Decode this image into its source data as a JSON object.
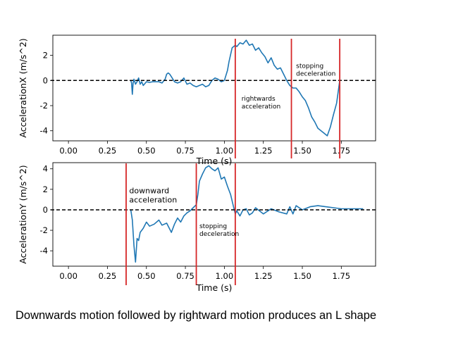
{
  "caption": "Downwards motion followed by rightward motion produces an L shape",
  "colors": {
    "series": "#1f77b4",
    "marker": "#d62728",
    "zero_line": "#000000",
    "axes": "#000000"
  },
  "chart_data": [
    {
      "type": "line",
      "xlabel": "Time (s)",
      "ylabel": "AccelerationX (m/s^2)",
      "xlim": [
        -0.1,
        1.97
      ],
      "ylim": [
        -4.8,
        3.6
      ],
      "xticks": [
        "0.00",
        "0.25",
        "0.50",
        "0.75",
        "1.00",
        "1.25",
        "1.50",
        "1.75"
      ],
      "yticks": [
        "2",
        "0",
        "-2",
        "-4"
      ],
      "reference_line": {
        "y": 0,
        "style": "dashed"
      },
      "markers": [
        1.07,
        1.43,
        1.74
      ],
      "annotations": [
        {
          "lines": [
            "rightwards",
            "acceleration"
          ],
          "x": 1.11,
          "y": -1.6,
          "size": "small"
        },
        {
          "lines": [
            "stopping",
            "deceleration"
          ],
          "x": 1.46,
          "y": 1.0,
          "size": "small"
        }
      ],
      "series": [
        {
          "x": [
            0.4,
            0.405,
            0.41,
            0.415,
            0.42,
            0.43,
            0.44,
            0.45,
            0.46,
            0.47,
            0.48,
            0.5,
            0.52,
            0.54,
            0.56,
            0.58,
            0.6,
            0.62,
            0.63,
            0.64,
            0.65,
            0.66,
            0.68,
            0.7,
            0.72,
            0.74,
            0.76,
            0.78,
            0.8,
            0.82,
            0.84,
            0.86,
            0.88,
            0.9,
            0.92,
            0.94,
            0.96,
            0.98,
            1.0,
            1.02,
            1.03,
            1.05,
            1.07,
            1.08,
            1.1,
            1.12,
            1.14,
            1.16,
            1.18,
            1.2,
            1.22,
            1.24,
            1.26,
            1.28,
            1.3,
            1.32,
            1.34,
            1.36,
            1.38,
            1.4,
            1.42,
            1.44,
            1.46,
            1.48,
            1.5,
            1.52,
            1.54,
            1.56,
            1.58,
            1.6,
            1.62,
            1.64,
            1.66,
            1.68,
            1.7,
            1.72,
            1.74
          ],
          "y": [
            0,
            -0.2,
            -1.1,
            -0.2,
            0.1,
            -0.3,
            -0.1,
            0.2,
            -0.3,
            -0.1,
            -0.4,
            -0.1,
            -0.15,
            -0.1,
            -0.1,
            -0.1,
            -0.2,
            0.1,
            0.5,
            0.6,
            0.5,
            0.3,
            -0.1,
            -0.2,
            -0.1,
            0.2,
            -0.3,
            -0.2,
            -0.4,
            -0.5,
            -0.4,
            -0.3,
            -0.5,
            -0.4,
            0.0,
            0.2,
            0.1,
            -0.1,
            0.0,
            0.8,
            1.5,
            2.6,
            2.8,
            2.7,
            3.0,
            2.9,
            3.2,
            2.8,
            2.9,
            2.4,
            2.6,
            2.2,
            1.9,
            1.4,
            1.8,
            1.2,
            0.9,
            1.0,
            0.5,
            0.0,
            -0.4,
            -0.6,
            -0.6,
            -0.9,
            -1.3,
            -1.6,
            -2.2,
            -2.9,
            -3.3,
            -3.8,
            -4.0,
            -4.2,
            -4.4,
            -3.7,
            -2.7,
            -1.8,
            0.0
          ]
        }
      ]
    },
    {
      "type": "line",
      "xlabel": "Time (s)",
      "ylabel": "AccelerationY (m/s^2)",
      "xlim": [
        -0.1,
        1.97
      ],
      "ylim": [
        -5.5,
        4.6
      ],
      "xticks": [
        "0.00",
        "0.25",
        "0.50",
        "0.75",
        "1.00",
        "1.25",
        "1.50",
        "1.75"
      ],
      "yticks": [
        "4",
        "2",
        "0",
        "-2",
        "-4"
      ],
      "reference_line": {
        "y": 0,
        "style": "dashed"
      },
      "markers": [
        0.37,
        0.82,
        1.07
      ],
      "annotations": [
        {
          "lines": [
            "downward",
            "acceleration"
          ],
          "x": 0.39,
          "y": 1.6,
          "size": "large"
        },
        {
          "lines": [
            "stopping",
            "deceleration"
          ],
          "x": 0.84,
          "y": -1.8,
          "size": "small"
        }
      ],
      "series": [
        {
          "x": [
            0.4,
            0.41,
            0.42,
            0.43,
            0.44,
            0.45,
            0.46,
            0.47,
            0.48,
            0.5,
            0.52,
            0.55,
            0.58,
            0.6,
            0.63,
            0.66,
            0.68,
            0.7,
            0.72,
            0.74,
            0.76,
            0.78,
            0.8,
            0.82,
            0.83,
            0.84,
            0.86,
            0.88,
            0.9,
            0.92,
            0.94,
            0.96,
            0.98,
            1.0,
            1.02,
            1.04,
            1.06,
            1.07,
            1.08,
            1.1,
            1.12,
            1.14,
            1.16,
            1.18,
            1.2,
            1.25,
            1.3,
            1.35,
            1.4,
            1.42,
            1.44,
            1.46,
            1.5,
            1.55,
            1.6,
            1.65,
            1.7,
            1.75,
            1.8,
            1.85,
            1.89
          ],
          "y": [
            0,
            -1.0,
            -3.5,
            -5.1,
            -2.8,
            -3.0,
            -2.2,
            -2.0,
            -1.8,
            -1.2,
            -1.6,
            -1.4,
            -1.0,
            -1.5,
            -1.3,
            -2.2,
            -1.4,
            -0.8,
            -1.2,
            -0.6,
            -0.3,
            -0.1,
            0.2,
            0.5,
            1.5,
            2.8,
            3.5,
            4.1,
            4.3,
            4.0,
            3.8,
            4.1,
            3.0,
            3.2,
            2.3,
            1.5,
            0.2,
            -0.4,
            -0.1,
            -0.6,
            0.0,
            0.1,
            -0.5,
            -0.3,
            0.2,
            -0.4,
            0.1,
            -0.2,
            -0.4,
            0.3,
            -0.4,
            0.4,
            0.0,
            0.3,
            0.4,
            0.3,
            0.2,
            0.1,
            0.1,
            0.1,
            0.1
          ]
        }
      ]
    }
  ]
}
